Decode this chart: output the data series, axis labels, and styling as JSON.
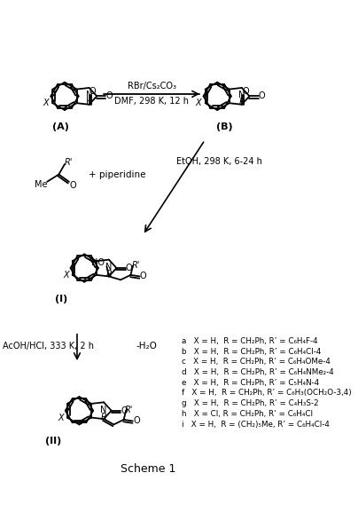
{
  "title": "Scheme 1",
  "background": "#ffffff",
  "fig_width": 4.04,
  "fig_height": 5.95,
  "dpi": 100,
  "compound_labels": [
    "a   X = H,  R = CH₂Ph, R’ = C₆H₄F-4",
    "b   X = H,  R = CH₂Ph, R’ = C₆H₄Cl-4",
    "c   X = H,  R = CH₂Ph, R’ = C₆H₄OMe-4",
    "d   X = H,  R = CH₂Ph, R’ = C₆H₄NMe₂-4",
    "e   X = H,  R = CH₂Ph, R’ = C₅H₄N-4",
    "f   X = H,  R = CH₂Ph, R’ = C₆H₃(OCH₂O-3,4)",
    "g   X = H,  R = CH₂Ph, R’ = C₄H₃S-2",
    "h   X = Cl, R = CH₂Ph, R’ = C₆H₄Cl",
    "i   X = H,  R = (CH₂)₅Me, R’ = C₆H₄Cl-4"
  ],
  "step1_top": "RBr/Cs₂CO₃",
  "step1_bot": "DMF, 298 K, 12 h",
  "step2": "EtOH, 298 K, 6-24 h",
  "step3_left": "AcOH/HCl, 333 K, 2 h",
  "step3_right": "-H₂O",
  "piperidine": "+ piperidine",
  "scheme_label": "Scheme 1"
}
